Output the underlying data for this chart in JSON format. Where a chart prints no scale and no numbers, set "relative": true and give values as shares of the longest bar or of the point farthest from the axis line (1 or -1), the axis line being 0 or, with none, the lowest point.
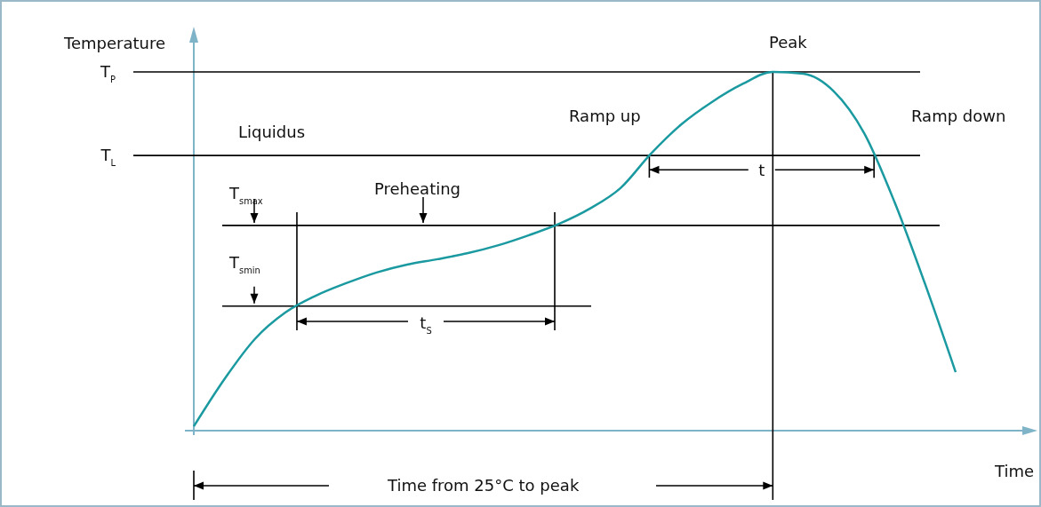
{
  "chart_data": {
    "type": "line",
    "relative": true,
    "ylabel": "Temperature",
    "xlabel": "Time",
    "categories": [
      null,
      null,
      null,
      null,
      null,
      null,
      null,
      null,
      null,
      null,
      null,
      null,
      null,
      null,
      null,
      null,
      null,
      null,
      null,
      null,
      null,
      null,
      null,
      null,
      null,
      null
    ],
    "series": [
      {
        "color": "#1a9aa0",
        "values": [
          0.012,
          0.143,
          0.255,
          0.329,
          0.376,
          0.411,
          0.441,
          0.463,
          0.478,
          0.495,
          0.517,
          0.545,
          0.577,
          0.619,
          0.676,
          0.772,
          0.854,
          0.916,
          0.966,
          1,
          0.995,
          0.946,
          0.829,
          0.636,
          0.408,
          0.163
        ]
      }
    ],
    "ref_lines": [
      {
        "axis": "y",
        "value": 1,
        "label": "T$_{P}$",
        "color": "#000000"
      },
      {
        "axis": "y",
        "value": 0.767,
        "label": "T$_{L}$",
        "color": "#000000"
      },
      {
        "axis": "y",
        "value": 0.572,
        "label": "T$_{smax}$",
        "color": "#000000"
      },
      {
        "axis": "y",
        "value": 0.347,
        "label": "T$_{smin}$",
        "color": "#000000"
      }
    ],
    "annotations": [
      "Liquidus",
      "Preheating",
      "Ramp up",
      "Peak",
      "Ramp down",
      "t$_{S}$",
      "t",
      "Time from 25°C to peak"
    ],
    "marker": "none",
    "line_style": "solid"
  }
}
